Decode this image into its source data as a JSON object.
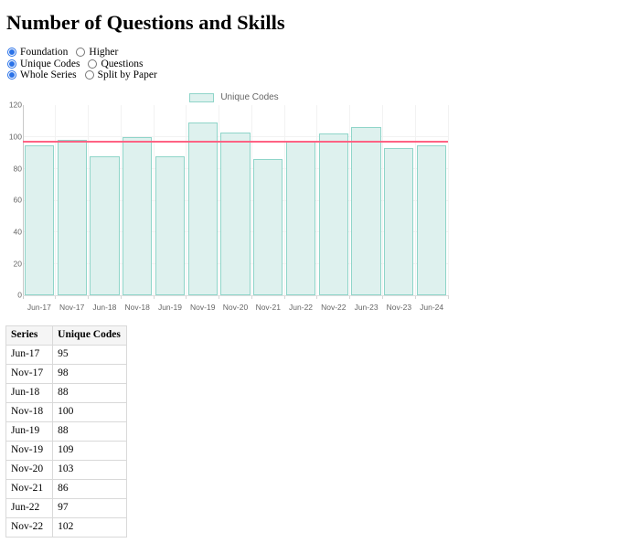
{
  "page": {
    "title": "Number of Questions and Skills"
  },
  "controls": {
    "groups": [
      {
        "name": "tier",
        "options": [
          {
            "label": "Foundation",
            "selected": true
          },
          {
            "label": "Higher",
            "selected": false
          }
        ]
      },
      {
        "name": "metric",
        "options": [
          {
            "label": "Unique Codes",
            "selected": true
          },
          {
            "label": "Questions",
            "selected": false
          }
        ]
      },
      {
        "name": "series-mode",
        "options": [
          {
            "label": "Whole Series",
            "selected": true
          },
          {
            "label": "Split by Paper",
            "selected": false
          }
        ]
      }
    ]
  },
  "chart_data": {
    "type": "bar",
    "title": "",
    "legend_position": "top",
    "grid": true,
    "categories": [
      "Jun-17",
      "Nov-17",
      "Jun-18",
      "Nov-18",
      "Jun-19",
      "Nov-19",
      "Nov-20",
      "Nov-21",
      "Jun-22",
      "Nov-22",
      "Jun-23",
      "Nov-23",
      "Jun-24"
    ],
    "series": [
      {
        "name": "Unique Codes",
        "values": [
          95,
          98,
          88,
          100,
          88,
          109,
          103,
          86,
          97,
          102,
          106,
          93,
          95
        ]
      }
    ],
    "average_line": {
      "value": 96.8
    },
    "ylim": [
      0,
      120
    ],
    "yticks": [
      0,
      20,
      40,
      60,
      80,
      100,
      120
    ],
    "xlabel": "",
    "ylabel": "",
    "colors": {
      "bar_fill": "#def1ee",
      "bar_border": "#8fd5c9",
      "average_line": "#ff6384",
      "axis_text": "#666666",
      "gridline": "#f2f2f2"
    }
  },
  "table": {
    "headers": [
      "Series",
      "Unique Codes"
    ],
    "rows": [
      [
        "Jun-17",
        "95"
      ],
      [
        "Nov-17",
        "98"
      ],
      [
        "Jun-18",
        "88"
      ],
      [
        "Nov-18",
        "100"
      ],
      [
        "Jun-19",
        "88"
      ],
      [
        "Nov-19",
        "109"
      ],
      [
        "Nov-20",
        "103"
      ],
      [
        "Nov-21",
        "86"
      ],
      [
        "Jun-22",
        "97"
      ],
      [
        "Nov-22",
        "102"
      ]
    ]
  }
}
